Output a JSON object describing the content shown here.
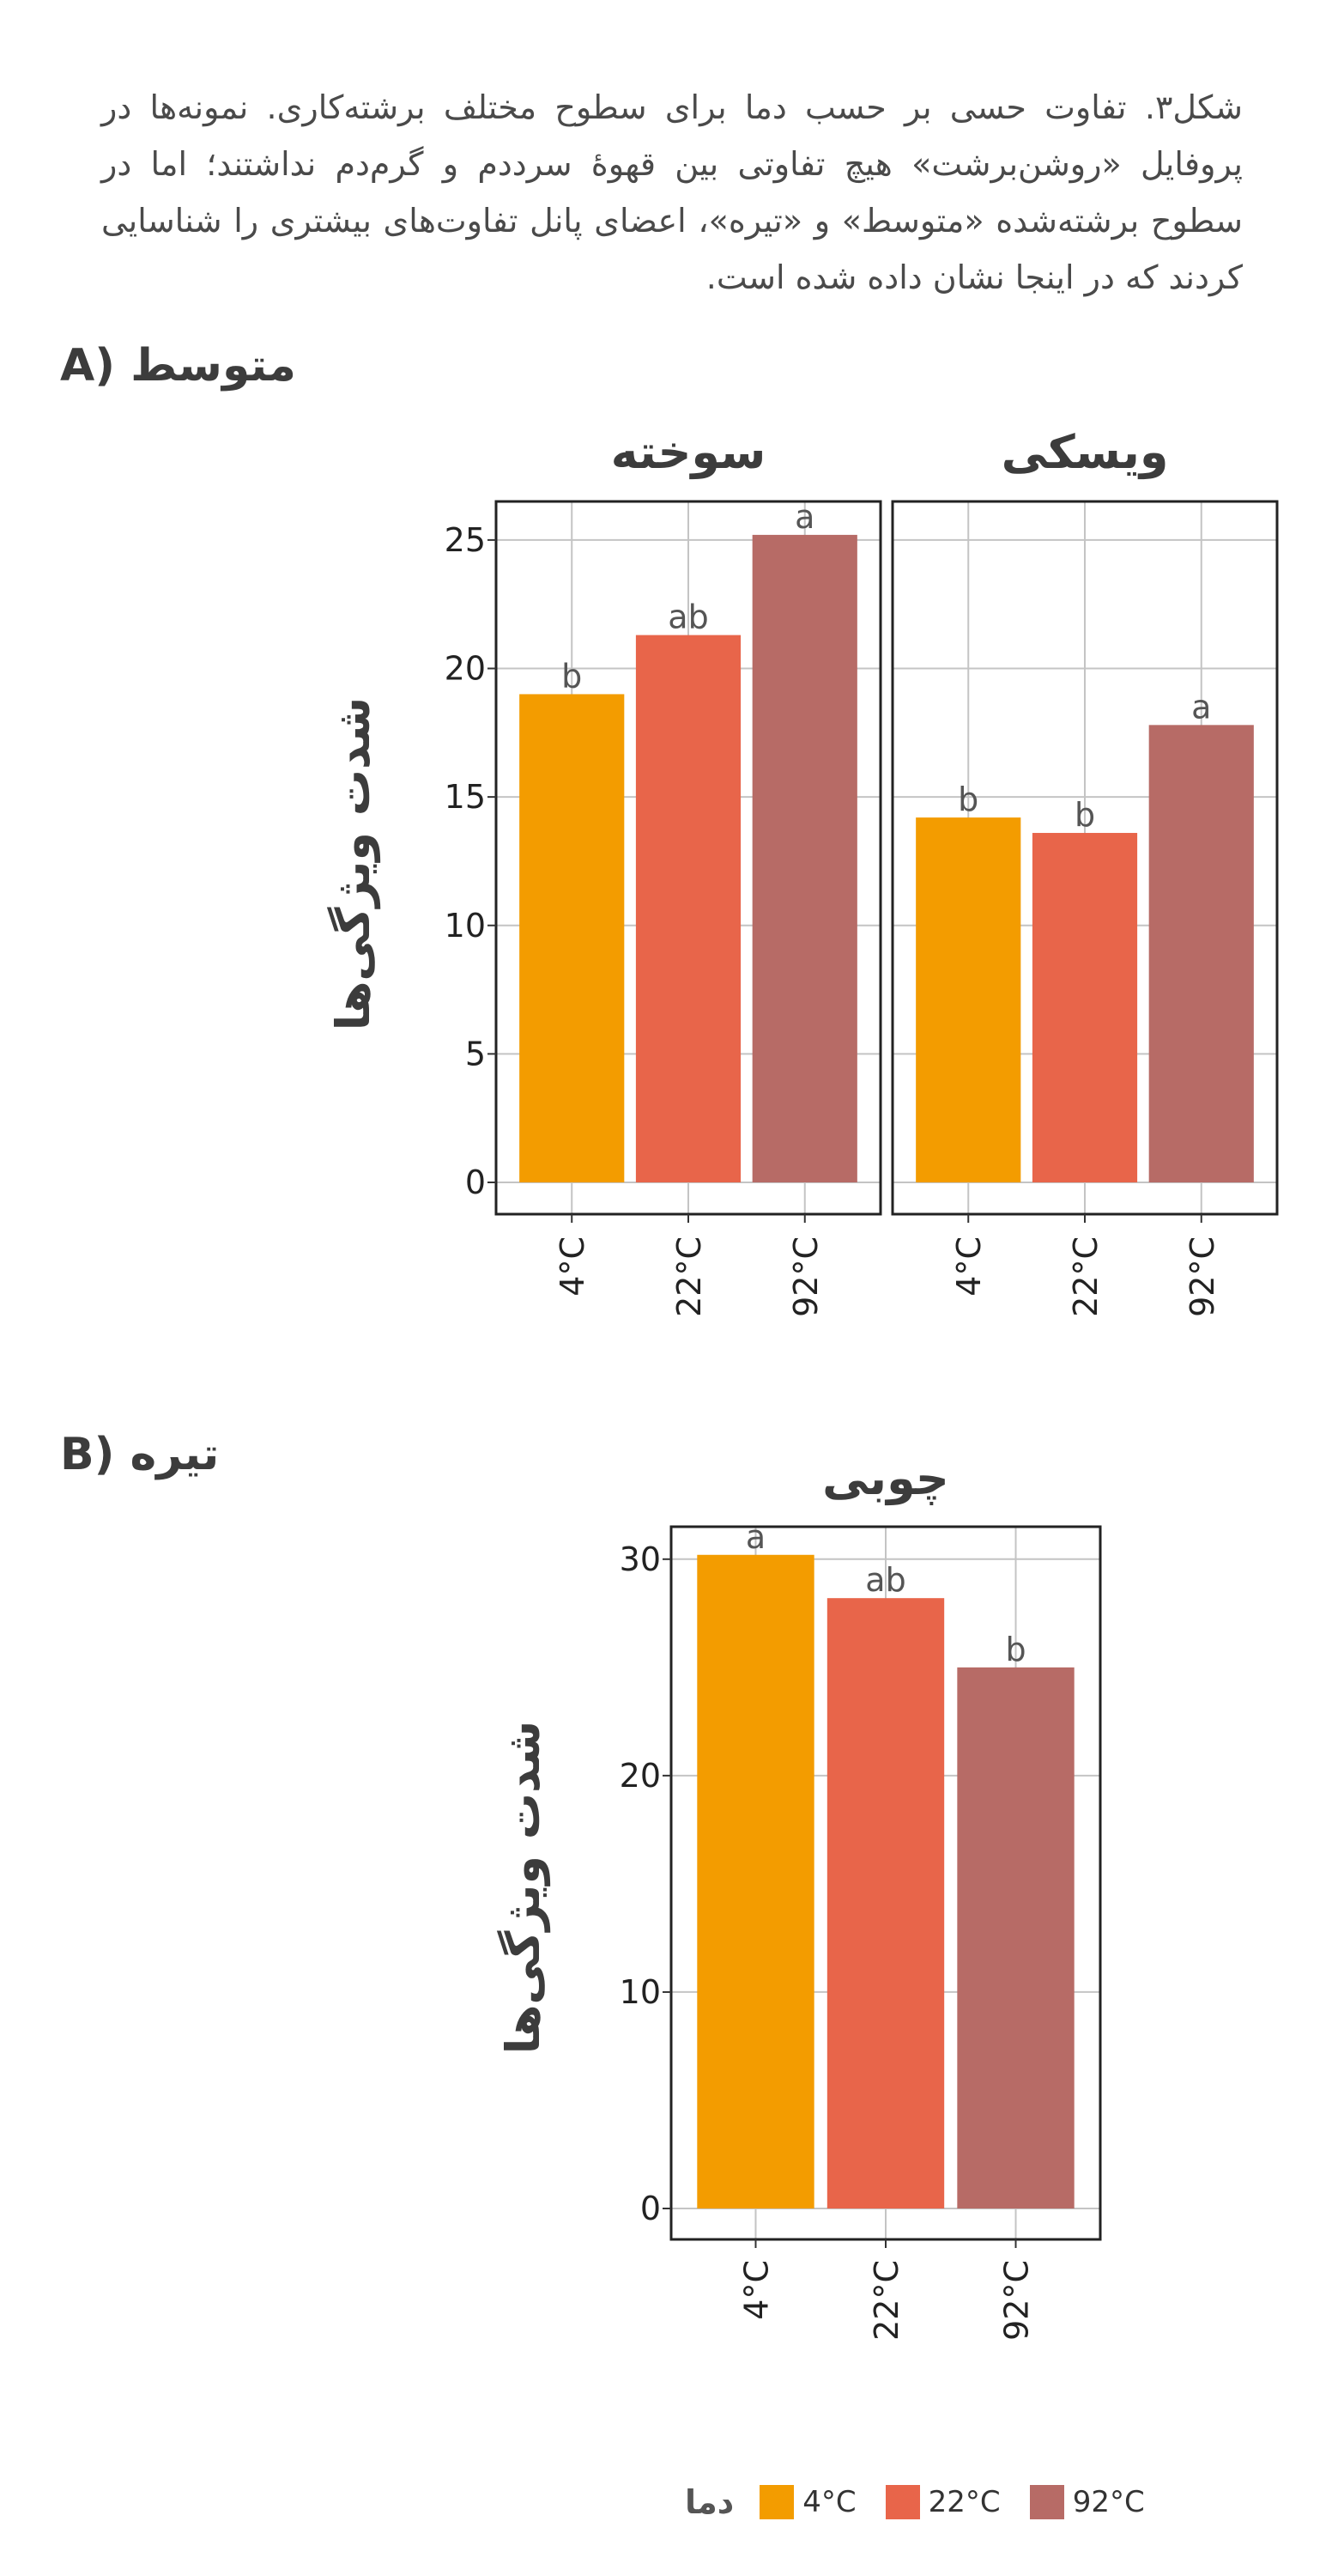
{
  "caption": "شکل۳. تفاوت حسی بر حسب دما برای سطوح مختلف برشته‌کاری. نمونه‌ها در پروفایل «روشن‌برشت» هیچ تفاوتی بین قهوهٔ سرددم و گرم‌دم نداشتند؛ اما در سطوح برشته‌شده «متوسط» و «تیره»، اعضای پانل تفاوت‌های بیشتری را شناسایی کردند که در اینجا نشان داده شده است.",
  "sections": [
    {
      "letter": "A)",
      "label": "متوسط"
    },
    {
      "letter": "B)",
      "label": "تیره"
    }
  ],
  "legend": {
    "title": "دما",
    "items": [
      {
        "label": "4°C",
        "color": "#F39C00"
      },
      {
        "label": "22°C",
        "color": "#E8654A"
      },
      {
        "label": "92°C",
        "color": "#B76B66"
      }
    ]
  },
  "chart_data": [
    {
      "type": "bar",
      "panel": "A",
      "ylabel": "شدت ویژگی‌ها",
      "ylim": [
        0,
        26.5
      ],
      "yticks": [
        0,
        5,
        10,
        15,
        20,
        25
      ],
      "categories": [
        "4°C",
        "22°C",
        "92°C"
      ],
      "facets": [
        {
          "title": "سوخته",
          "values": [
            19.0,
            21.3,
            25.2
          ],
          "labels": [
            "b",
            "ab",
            "a"
          ]
        },
        {
          "title": "ویسکی",
          "values": [
            14.2,
            13.6,
            17.8
          ],
          "labels": [
            "b",
            "b",
            "a"
          ]
        }
      ],
      "grid": true
    },
    {
      "type": "bar",
      "panel": "B",
      "ylabel": "شدت ویژگی‌ها",
      "ylim": [
        0,
        31.5
      ],
      "yticks": [
        0,
        10,
        20,
        30
      ],
      "categories": [
        "4°C",
        "22°C",
        "92°C"
      ],
      "facets": [
        {
          "title": "چوبی",
          "values": [
            30.2,
            28.2,
            25.0
          ],
          "labels": [
            "a",
            "ab",
            "b"
          ]
        }
      ],
      "grid": true
    }
  ]
}
